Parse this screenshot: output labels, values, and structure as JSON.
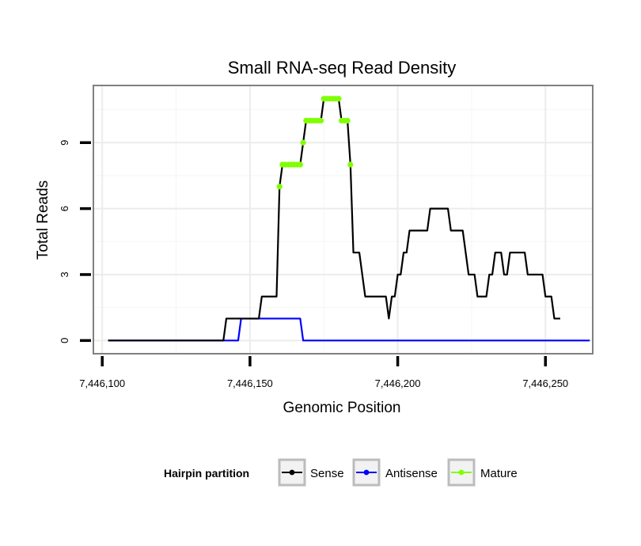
{
  "chart_data": {
    "type": "line",
    "title": "Small RNA-seq Read Density",
    "xlabel": "Genomic Position",
    "ylabel": "Total Reads",
    "xlim": [
      7446097,
      7446266
    ],
    "ylim": [
      -0.6,
      11.6
    ],
    "x_ticks": [
      7446100,
      7446150,
      7446200,
      7446250
    ],
    "x_tick_labels": [
      "7,446,100",
      "7,446,150",
      "7,446,200",
      "7,446,250"
    ],
    "y_ticks": [
      0,
      3,
      6,
      9
    ],
    "y_tick_labels": [
      "0",
      "3",
      "6",
      "9"
    ],
    "grid": true,
    "legend": {
      "title": "Hairpin partition",
      "position": "bottom",
      "entries": [
        {
          "label": "Sense",
          "color": "#000000"
        },
        {
          "label": "Antisense",
          "color": "#0000ff"
        },
        {
          "label": "Mature",
          "color": "#7fff00"
        }
      ]
    },
    "series": [
      {
        "name": "Sense",
        "color": "#000000",
        "points": [
          [
            7446102,
            0
          ],
          [
            7446141,
            0
          ],
          [
            7446142,
            1
          ],
          [
            7446150,
            1
          ],
          [
            7446153,
            1
          ],
          [
            7446154,
            2
          ],
          [
            7446159,
            2
          ],
          [
            7446160,
            7
          ],
          [
            7446161,
            8
          ],
          [
            7446167,
            8
          ],
          [
            7446168,
            9
          ],
          [
            7446169,
            10
          ],
          [
            7446174,
            10
          ],
          [
            7446175,
            11
          ],
          [
            7446180,
            11
          ],
          [
            7446181,
            10
          ],
          [
            7446183,
            10
          ],
          [
            7446184,
            8
          ],
          [
            7446185,
            4
          ],
          [
            7446187,
            4
          ],
          [
            7446189,
            2
          ],
          [
            7446196,
            2
          ],
          [
            7446197,
            1
          ],
          [
            7446198,
            2
          ],
          [
            7446199,
            2
          ],
          [
            7446200,
            3
          ],
          [
            7446201,
            3
          ],
          [
            7446202,
            4
          ],
          [
            7446203,
            4
          ],
          [
            7446204,
            5
          ],
          [
            7446210,
            5
          ],
          [
            7446211,
            6
          ],
          [
            7446217,
            6
          ],
          [
            7446218,
            5
          ],
          [
            7446222,
            5
          ],
          [
            7446223,
            4
          ],
          [
            7446224,
            3
          ],
          [
            7446226,
            3
          ],
          [
            7446227,
            2
          ],
          [
            7446230,
            2
          ],
          [
            7446231,
            3
          ],
          [
            7446232,
            3
          ],
          [
            7446233,
            4
          ],
          [
            7446235,
            4
          ],
          [
            7446236,
            3
          ],
          [
            7446237,
            3
          ],
          [
            7446238,
            4
          ],
          [
            7446243,
            4
          ],
          [
            7446244,
            3
          ],
          [
            7446249,
            3
          ],
          [
            7446250,
            2
          ],
          [
            7446252,
            2
          ],
          [
            7446253,
            1
          ],
          [
            7446255,
            1
          ]
        ]
      },
      {
        "name": "Antisense",
        "color": "#0000ff",
        "points": [
          [
            7446102,
            0
          ],
          [
            7446146,
            0
          ],
          [
            7446147,
            1
          ],
          [
            7446167,
            1
          ],
          [
            7446168,
            0
          ],
          [
            7446265,
            0
          ]
        ]
      },
      {
        "name": "Mature",
        "color": "#7fff00",
        "points": [
          [
            7446160,
            7
          ],
          [
            7446161,
            8
          ],
          [
            7446162,
            8
          ],
          [
            7446163,
            8
          ],
          [
            7446164,
            8
          ],
          [
            7446165,
            8
          ],
          [
            7446166,
            8
          ],
          [
            7446167,
            8
          ],
          [
            7446168,
            9
          ],
          [
            7446169,
            10
          ],
          [
            7446170,
            10
          ],
          [
            7446171,
            10
          ],
          [
            7446172,
            10
          ],
          [
            7446173,
            10
          ],
          [
            7446174,
            10
          ],
          [
            7446175,
            11
          ],
          [
            7446176,
            11
          ],
          [
            7446177,
            11
          ],
          [
            7446178,
            11
          ],
          [
            7446179,
            11
          ],
          [
            7446180,
            11
          ],
          [
            7446181,
            10
          ],
          [
            7446182,
            10
          ],
          [
            7446183,
            10
          ],
          [
            7446184,
            8
          ]
        ]
      }
    ]
  }
}
